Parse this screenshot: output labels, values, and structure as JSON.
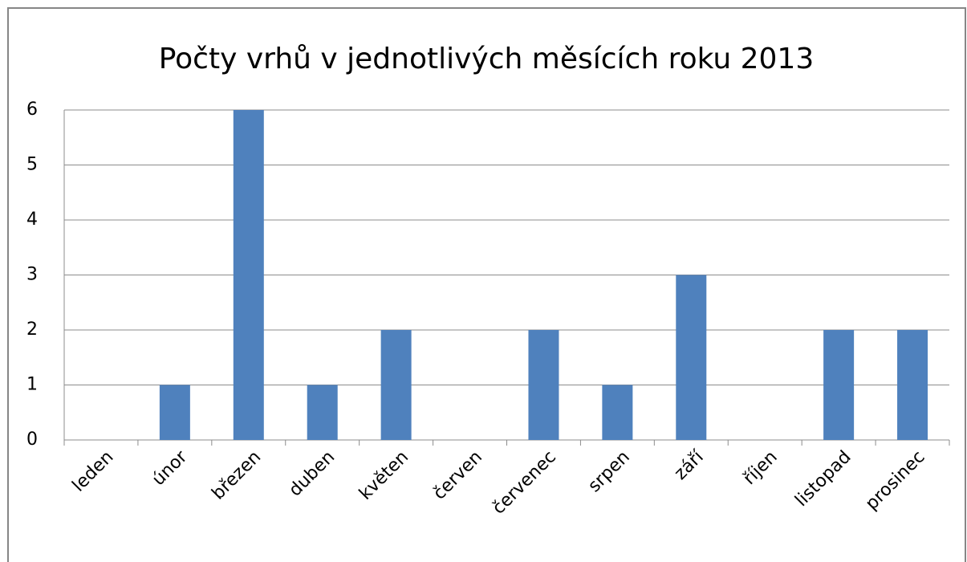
{
  "chart_data": {
    "type": "bar",
    "title": "Počty vrhů v jednotlivých měsících roku 2013",
    "categories": [
      "leden",
      "únor",
      "březen",
      "duben",
      "květen",
      "červen",
      "červenec",
      "srpen",
      "září",
      "říjen",
      "listopad",
      "prosinec"
    ],
    "values": [
      0,
      1,
      6,
      1,
      2,
      0,
      2,
      1,
      3,
      0,
      2,
      2
    ],
    "color": "#4f81bd",
    "ylim": [
      0,
      6
    ],
    "yticks": [
      0,
      1,
      2,
      3,
      4,
      5,
      6
    ],
    "grid": true
  }
}
